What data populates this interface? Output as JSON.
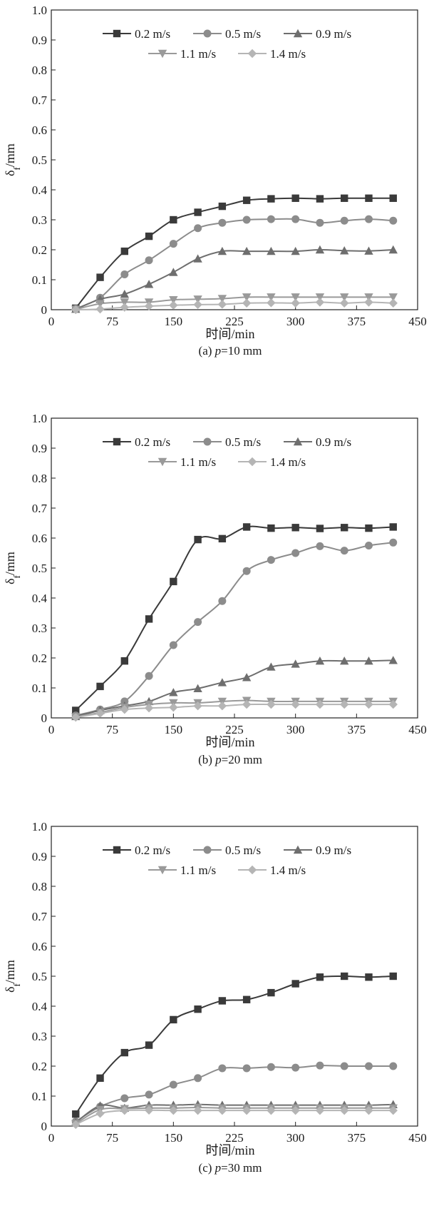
{
  "chart_data": [
    {
      "type": "line",
      "caption_prefix": "(a) ",
      "caption_var": "p",
      "caption_suffix": "=10 mm",
      "xlabel": "时间/min",
      "ylabel_main": "δ",
      "ylabel_sub": "f",
      "ylabel_unit": "/mm",
      "xlim": [
        0,
        450
      ],
      "ylim": [
        0,
        1.0
      ],
      "xticks": [
        0,
        75,
        150,
        225,
        300,
        375,
        450
      ],
      "yticks": [
        0,
        0.1,
        0.2,
        0.3,
        0.4,
        0.5,
        0.6,
        0.7,
        0.8,
        0.9,
        1.0
      ],
      "ytick_labels": [
        "0",
        "0.1",
        "0.2",
        "0.3",
        "0.4",
        "0.5",
        "0.6",
        "0.7",
        "0.8",
        "0.9",
        "1.0"
      ],
      "x": [
        30,
        60,
        90,
        120,
        150,
        180,
        210,
        240,
        270,
        300,
        330,
        360,
        390,
        420
      ],
      "legend_position": "top",
      "series": [
        {
          "name": "0.2 m/s",
          "marker": "square",
          "color": "#3a3a3a",
          "values": [
            0.005,
            0.108,
            0.195,
            0.245,
            0.3,
            0.325,
            0.345,
            0.365,
            0.37,
            0.372,
            0.37,
            0.372,
            0.372,
            0.372
          ]
        },
        {
          "name": "0.5 m/s",
          "marker": "circle",
          "color": "#8c8c8c",
          "values": [
            0.003,
            0.04,
            0.118,
            0.165,
            0.22,
            0.272,
            0.29,
            0.3,
            0.302,
            0.302,
            0.29,
            0.297,
            0.302,
            0.297
          ]
        },
        {
          "name": "0.9 m/s",
          "marker": "triangle-up",
          "color": "#6e6e6e",
          "values": [
            0.002,
            0.035,
            0.052,
            0.085,
            0.125,
            0.17,
            0.195,
            0.195,
            0.195,
            0.195,
            0.2,
            0.197,
            0.196,
            0.2
          ]
        },
        {
          "name": "1.1 m/s",
          "marker": "triangle-down",
          "color": "#9a9a9a",
          "values": [
            0.001,
            0.02,
            0.025,
            0.025,
            0.033,
            0.035,
            0.037,
            0.042,
            0.042,
            0.042,
            0.042,
            0.042,
            0.042,
            0.042
          ]
        },
        {
          "name": "1.4 m/s",
          "marker": "diamond",
          "color": "#b5b5b5",
          "values": [
            0.0,
            0.002,
            0.008,
            0.012,
            0.015,
            0.017,
            0.018,
            0.022,
            0.023,
            0.022,
            0.025,
            0.022,
            0.025,
            0.022
          ]
        }
      ]
    },
    {
      "type": "line",
      "caption_prefix": "(b) ",
      "caption_var": "p",
      "caption_suffix": "=20 mm",
      "xlabel": "时间/min",
      "ylabel_main": "δ",
      "ylabel_sub": "f",
      "ylabel_unit": "/mm",
      "xlim": [
        0,
        450
      ],
      "ylim": [
        0,
        1.0
      ],
      "xticks": [
        0,
        75,
        150,
        225,
        300,
        375,
        450
      ],
      "yticks": [
        0,
        0.1,
        0.2,
        0.3,
        0.4,
        0.5,
        0.6,
        0.7,
        0.8,
        0.9,
        1.0
      ],
      "ytick_labels": [
        "0",
        "0.1",
        "0.2",
        "0.3",
        "0.4",
        "0.5",
        "0.6",
        "0.7",
        "0.8",
        "0.9",
        "1.0"
      ],
      "x": [
        30,
        60,
        90,
        120,
        150,
        180,
        210,
        240,
        270,
        300,
        330,
        360,
        390,
        420
      ],
      "legend_position": "top",
      "series": [
        {
          "name": "0.2 m/s",
          "marker": "square",
          "color": "#3a3a3a",
          "values": [
            0.025,
            0.105,
            0.19,
            0.33,
            0.455,
            0.595,
            0.598,
            0.637,
            0.633,
            0.635,
            0.632,
            0.635,
            0.633,
            0.637
          ]
        },
        {
          "name": "0.5 m/s",
          "marker": "circle",
          "color": "#8c8c8c",
          "values": [
            0.008,
            0.028,
            0.055,
            0.14,
            0.243,
            0.32,
            0.39,
            0.49,
            0.527,
            0.55,
            0.573,
            0.558,
            0.575,
            0.585
          ]
        },
        {
          "name": "0.9 m/s",
          "marker": "triangle-up",
          "color": "#6e6e6e",
          "values": [
            0.005,
            0.025,
            0.04,
            0.055,
            0.085,
            0.098,
            0.118,
            0.135,
            0.17,
            0.18,
            0.19,
            0.19,
            0.19,
            0.192
          ]
        },
        {
          "name": "1.1 m/s",
          "marker": "triangle-down",
          "color": "#9a9a9a",
          "values": [
            0.003,
            0.018,
            0.035,
            0.045,
            0.05,
            0.05,
            0.055,
            0.058,
            0.055,
            0.055,
            0.055,
            0.055,
            0.055,
            0.055
          ]
        },
        {
          "name": "1.4 m/s",
          "marker": "diamond",
          "color": "#b5b5b5",
          "values": [
            0.002,
            0.015,
            0.028,
            0.033,
            0.035,
            0.04,
            0.04,
            0.045,
            0.045,
            0.045,
            0.045,
            0.045,
            0.045,
            0.045
          ]
        }
      ]
    },
    {
      "type": "line",
      "caption_prefix": "(c) ",
      "caption_var": "p",
      "caption_suffix": "=30 mm",
      "xlabel": "时间/min",
      "ylabel_main": "δ",
      "ylabel_sub": "f",
      "ylabel_unit": "/mm",
      "xlim": [
        0,
        450
      ],
      "ylim": [
        0,
        1.0
      ],
      "xticks": [
        0,
        75,
        150,
        225,
        300,
        375,
        450
      ],
      "yticks": [
        0,
        0.1,
        0.2,
        0.3,
        0.4,
        0.5,
        0.6,
        0.7,
        0.8,
        0.9,
        1.0
      ],
      "ytick_labels": [
        "0",
        "0.1",
        "0.2",
        "0.3",
        "0.4",
        "0.5",
        "0.6",
        "0.7",
        "0.8",
        "0.9",
        "1.0"
      ],
      "x": [
        30,
        60,
        90,
        120,
        150,
        180,
        210,
        240,
        270,
        300,
        330,
        360,
        390,
        420
      ],
      "legend_position": "top",
      "series": [
        {
          "name": "0.2 m/s",
          "marker": "square",
          "color": "#3a3a3a",
          "values": [
            0.04,
            0.16,
            0.245,
            0.27,
            0.355,
            0.39,
            0.418,
            0.422,
            0.445,
            0.475,
            0.497,
            0.5,
            0.497,
            0.5
          ]
        },
        {
          "name": "0.5 m/s",
          "marker": "circle",
          "color": "#8c8c8c",
          "values": [
            0.015,
            0.065,
            0.093,
            0.105,
            0.138,
            0.16,
            0.193,
            0.193,
            0.197,
            0.195,
            0.202,
            0.2,
            0.2,
            0.2
          ]
        },
        {
          "name": "0.9 m/s",
          "marker": "triangle-up",
          "color": "#6e6e6e",
          "values": [
            0.012,
            0.068,
            0.06,
            0.07,
            0.07,
            0.072,
            0.07,
            0.07,
            0.07,
            0.07,
            0.07,
            0.07,
            0.07,
            0.072
          ]
        },
        {
          "name": "1.1 m/s",
          "marker": "triangle-down",
          "color": "#9a9a9a",
          "values": [
            0.008,
            0.055,
            0.058,
            0.06,
            0.06,
            0.062,
            0.06,
            0.06,
            0.06,
            0.06,
            0.06,
            0.06,
            0.06,
            0.06
          ]
        },
        {
          "name": "1.4 m/s",
          "marker": "diamond",
          "color": "#b5b5b5",
          "values": [
            0.005,
            0.042,
            0.052,
            0.053,
            0.052,
            0.052,
            0.052,
            0.052,
            0.052,
            0.052,
            0.052,
            0.052,
            0.052,
            0.052
          ]
        }
      ]
    }
  ]
}
